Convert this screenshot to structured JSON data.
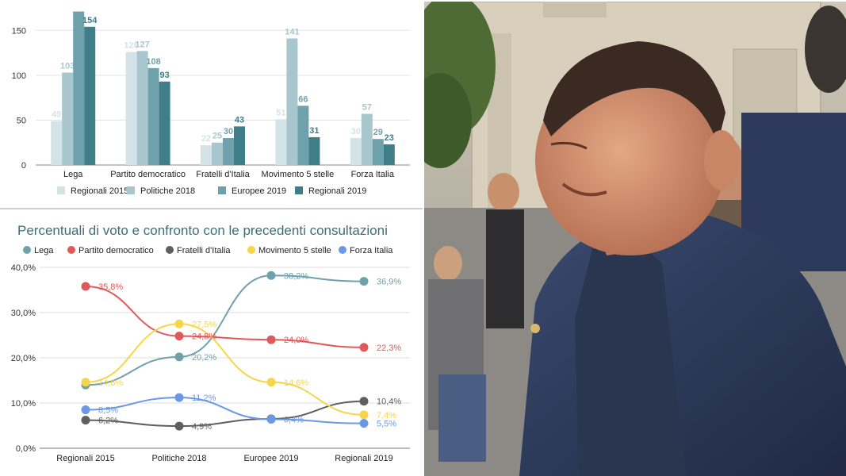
{
  "chart_data": [
    {
      "type": "bar",
      "title": "",
      "categories": [
        "Lega",
        "Partito democratico",
        "Fratelli d'Italia",
        "Movimento 5 stelle",
        "Forza Italia"
      ],
      "series": [
        {
          "name": "Regionali 2015",
          "color": "#d4e3e8",
          "values": [
            49,
            126,
            22,
            51,
            30
          ],
          "labels": [
            "49",
            "126",
            "22",
            "51",
            "30"
          ]
        },
        {
          "name": "Politiche 2018",
          "color": "#a7c6cd",
          "values": [
            103,
            127,
            25,
            141,
            57
          ],
          "labels": [
            "103",
            "127",
            "25",
            "141",
            "57"
          ]
        },
        {
          "name": "Europee 2019",
          "color": "#6fa1ac",
          "values": [
            171,
            108,
            30,
            66,
            29
          ],
          "labels": [
            "",
            "108",
            "30",
            "66",
            "29"
          ]
        },
        {
          "name": "Regionali 2019",
          "color": "#3f7d88",
          "values": [
            154,
            93,
            43,
            31,
            23
          ],
          "labels": [
            "154",
            "93",
            "43",
            "31",
            "23"
          ]
        }
      ],
      "ylim": [
        0,
        175
      ],
      "yticks": [
        "0",
        "50",
        "100",
        "150"
      ],
      "ytick_values": [
        0,
        50,
        100,
        150
      ],
      "grid": true,
      "legend": "bottom"
    },
    {
      "type": "line",
      "title": "Percentuali di voto e confronto con le precedenti consultazioni",
      "x": [
        "Regionali 2015",
        "Politiche 2018",
        "Europee 2019",
        "Regionali 2019"
      ],
      "series": [
        {
          "name": "Lega",
          "color": "#6fa1ac",
          "values": [
            14.0,
            20.2,
            38.2,
            36.9
          ],
          "labels": [
            "",
            "20,2%",
            "38,2%",
            "36,9%"
          ]
        },
        {
          "name": "Partito democratico",
          "color": "#e0595a",
          "values": [
            35.8,
            24.8,
            24.0,
            22.3
          ],
          "labels": [
            "35,8%",
            "24,8%",
            "24,0%",
            "22,3%"
          ]
        },
        {
          "name": "Fratelli d'Italia",
          "color": "#5f5f5f",
          "values": [
            6.2,
            4.9,
            6.5,
            10.4
          ],
          "labels": [
            "6,2%",
            "4,9%",
            "",
            "10,4%"
          ]
        },
        {
          "name": "Movimento 5 stelle",
          "color": "#f7d54a",
          "values": [
            14.6,
            27.5,
            14.6,
            7.4
          ],
          "labels": [
            "14,6%",
            "27,5%",
            "14,6%",
            "7,4%"
          ]
        },
        {
          "name": "Forza Italia",
          "color": "#6a98e6",
          "values": [
            8.5,
            11.2,
            6.4,
            5.5
          ],
          "labels": [
            "8,5%",
            "11,2%",
            "6,4%",
            "5,5%"
          ]
        }
      ],
      "ylim": [
        0,
        40
      ],
      "yticks": [
        "0,0%",
        "10,0%",
        "20,0%",
        "30,0%",
        "40,0%"
      ],
      "ytick_values": [
        0,
        10,
        20,
        30,
        40
      ],
      "grid": true,
      "legend": "top"
    }
  ],
  "photo": {
    "icon": "photo-icon"
  }
}
